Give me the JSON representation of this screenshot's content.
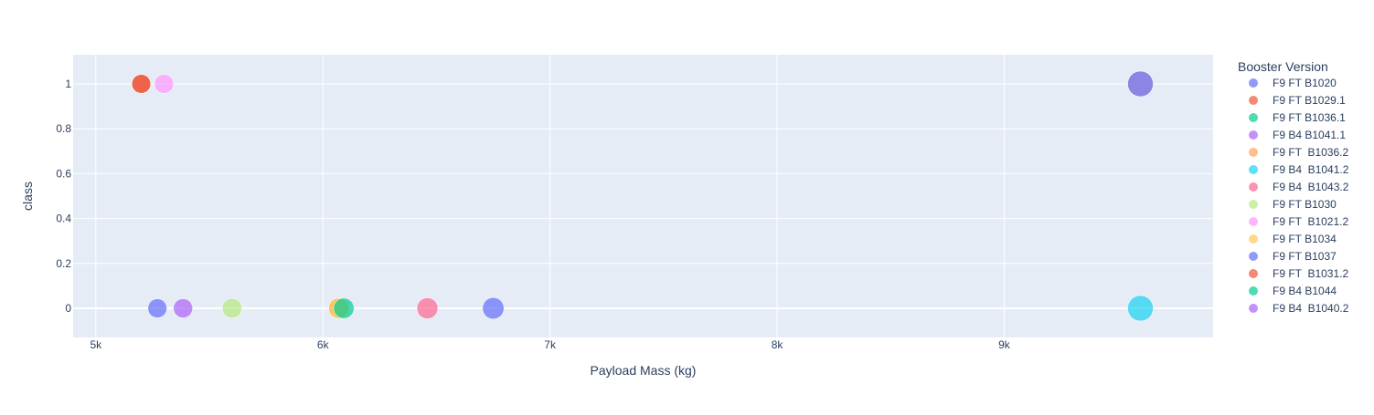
{
  "chart_data": {
    "type": "scatter",
    "title": "",
    "xlabel": "Payload Mass (kg)",
    "ylabel": "class",
    "xlim": [
      4900,
      9920
    ],
    "ylim": [
      -0.13,
      1.13
    ],
    "x_ticks": [
      {
        "value": 5000,
        "label": "5k"
      },
      {
        "value": 6000,
        "label": "6k"
      },
      {
        "value": 7000,
        "label": "7k"
      },
      {
        "value": 8000,
        "label": "8k"
      },
      {
        "value": 9000,
        "label": "9k"
      }
    ],
    "y_ticks": [
      {
        "value": 0,
        "label": "0"
      },
      {
        "value": 0.2,
        "label": "0.2"
      },
      {
        "value": 0.4,
        "label": "0.4"
      },
      {
        "value": 0.6,
        "label": "0.6"
      },
      {
        "value": 0.8,
        "label": "0.8"
      },
      {
        "value": 1,
        "label": "1"
      }
    ],
    "grid": true,
    "legend_title": "Booster Version",
    "legend_position": "right",
    "series": [
      {
        "name": "F9 FT B1020",
        "color": "#636efa",
        "points": [
          {
            "x": 6750,
            "y": 0,
            "size": 6750
          }
        ]
      },
      {
        "name": "F9 FT B1029.1",
        "color": "#EF553B",
        "points": [
          {
            "x": 5200,
            "y": 1,
            "size": 5200
          }
        ]
      },
      {
        "name": "F9 FT B1036.1",
        "color": "#00cc96",
        "points": [
          {
            "x": 9600,
            "y": 1,
            "size": 9600
          }
        ]
      },
      {
        "name": "F9 B4 B1041.1",
        "color": "#ab63fa",
        "points": [
          {
            "x": 9600,
            "y": 1,
            "size": 9600
          }
        ]
      },
      {
        "name": "F9 FT  B1036.2",
        "color": "#FFA15A",
        "points": [
          {
            "x": 6070,
            "y": 0,
            "size": 6070
          }
        ]
      },
      {
        "name": "F9 B4  B1041.2",
        "color": "#19d3f3",
        "points": [
          {
            "x": 9600,
            "y": 0,
            "size": 9600
          }
        ]
      },
      {
        "name": "F9 B4  B1043.2",
        "color": "#FF6692",
        "points": [
          {
            "x": 6460,
            "y": 0,
            "size": 6460
          }
        ]
      },
      {
        "name": "F9 FT B1030",
        "color": "#B6E880",
        "points": [
          {
            "x": 5600,
            "y": 0,
            "size": 5600
          }
        ]
      },
      {
        "name": "F9 FT  B1021.2",
        "color": "#FF97FF",
        "points": [
          {
            "x": 5300,
            "y": 1,
            "size": 5300
          }
        ]
      },
      {
        "name": "F9 FT B1034",
        "color": "#FECB52",
        "points": [
          {
            "x": 6070,
            "y": 0,
            "size": 6070
          }
        ]
      },
      {
        "name": "F9 FT B1037",
        "color": "#636efa",
        "points": [
          {
            "x": 5271,
            "y": 0,
            "size": 5271
          }
        ]
      },
      {
        "name": "F9 FT  B1031.2",
        "color": "#EF553B",
        "points": [
          {
            "x": 5200,
            "y": 1,
            "size": 5200
          }
        ]
      },
      {
        "name": "F9 B4 B1044",
        "color": "#00cc96",
        "points": [
          {
            "x": 6092,
            "y": 0,
            "size": 6092
          }
        ]
      },
      {
        "name": "F9 B4  B1040.2",
        "color": "#ab63fa",
        "points": [
          {
            "x": 5384,
            "y": 0,
            "size": 5384
          }
        ]
      }
    ]
  }
}
